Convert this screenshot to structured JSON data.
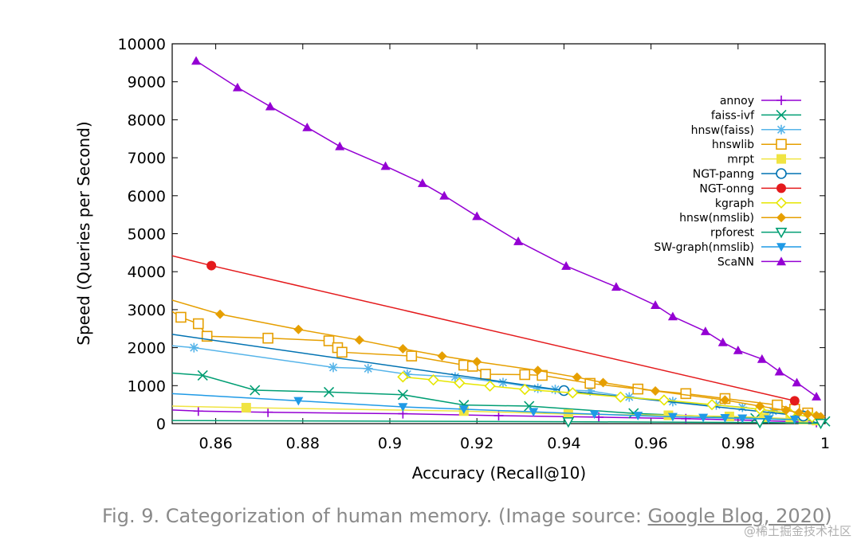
{
  "chart_data": {
    "type": "line",
    "title": "",
    "xlabel": "Accuracy (Recall@10)",
    "ylabel": "Speed (Queries per Second)",
    "xlim": [
      0.85,
      1.0
    ],
    "ylim": [
      0,
      10000
    ],
    "xticks": [
      0.86,
      0.88,
      0.9,
      0.92,
      0.94,
      0.96,
      0.98,
      1.0
    ],
    "xtick_labels": [
      "0.86",
      "0.88",
      "0.9",
      "0.92",
      "0.94",
      "0.96",
      "0.98",
      "1"
    ],
    "yticks": [
      0,
      1000,
      2000,
      3000,
      4000,
      5000,
      6000,
      7000,
      8000,
      9000,
      10000
    ],
    "ytick_labels": [
      "0",
      "1000",
      "2000",
      "3000",
      "4000",
      "5000",
      "6000",
      "7000",
      "8000",
      "9000",
      "10000"
    ],
    "grid": false,
    "legend_position": "top-right",
    "series": [
      {
        "name": "annoy",
        "color": "#9400d3",
        "marker": "plus",
        "x": [
          0.85,
          0.856,
          0.872,
          0.903,
          0.925,
          0.948,
          0.968,
          0.985,
          0.998
        ],
        "y": [
          360,
          330,
          300,
          260,
          210,
          170,
          130,
          80,
          30
        ]
      },
      {
        "name": "faiss-ivf",
        "color": "#009e73",
        "marker": "cross",
        "x": [
          0.85,
          0.857,
          0.869,
          0.886,
          0.903,
          0.917,
          0.932,
          0.956,
          0.984,
          1.0
        ],
        "y": [
          1330,
          1270,
          880,
          830,
          760,
          490,
          460,
          270,
          140,
          60
        ]
      },
      {
        "name": "hnsw(faiss)",
        "color": "#56b4e9",
        "marker": "star",
        "x": [
          0.85,
          0.855,
          0.887,
          0.895,
          0.904,
          0.915,
          0.926,
          0.934,
          0.938,
          0.946,
          0.955,
          0.965,
          0.975,
          0.981,
          0.988,
          0.993,
          0.997
        ],
        "y": [
          2050,
          2000,
          1480,
          1450,
          1300,
          1230,
          1080,
          930,
          900,
          860,
          700,
          580,
          490,
          430,
          330,
          250,
          180
        ]
      },
      {
        "name": "hnswlib",
        "color": "#e69f00",
        "marker": "open-square",
        "x": [
          0.85,
          0.852,
          0.856,
          0.858,
          0.872,
          0.886,
          0.888,
          0.889,
          0.905,
          0.917,
          0.919,
          0.922,
          0.931,
          0.935,
          0.946,
          0.957,
          0.968,
          0.977,
          0.989,
          0.993,
          0.996
        ],
        "y": [
          2950,
          2800,
          2630,
          2300,
          2250,
          2180,
          2000,
          1880,
          1780,
          1540,
          1510,
          1300,
          1290,
          1270,
          1060,
          910,
          790,
          660,
          490,
          380,
          280
        ]
      },
      {
        "name": "mrpt",
        "color": "#f0e442",
        "marker": "filled-square",
        "x": [
          0.85,
          0.867,
          0.917,
          0.941,
          0.964,
          0.978,
          0.986,
          0.992,
          0.995,
          0.998
        ],
        "y": [
          460,
          420,
          330,
          250,
          220,
          190,
          160,
          130,
          110,
          80
        ]
      },
      {
        "name": "NGT-panng",
        "color": "#0072b2",
        "marker": "open-circle",
        "x": [
          0.85,
          0.94,
          0.995,
          0.998
        ],
        "y": [
          2350,
          870,
          200,
          150
        ]
      },
      {
        "name": "NGT-onng",
        "color": "#e41a1c",
        "marker": "filled-circle",
        "x": [
          0.85,
          0.859,
          0.993
        ],
        "y": [
          4420,
          4160,
          600
        ]
      },
      {
        "name": "kgraph",
        "color": "#e6e600",
        "marker": "open-diamond",
        "x": [
          0.903,
          0.91,
          0.916,
          0.923,
          0.931,
          0.942,
          0.953,
          0.963,
          0.974,
          0.985,
          0.992,
          0.997
        ],
        "y": [
          1230,
          1150,
          1070,
          990,
          900,
          810,
          700,
          620,
          500,
          380,
          260,
          170
        ]
      },
      {
        "name": "hnsw(nmslib)",
        "color": "#e69f00",
        "marker": "filled-diamond",
        "x": [
          0.85,
          0.861,
          0.879,
          0.893,
          0.903,
          0.912,
          0.92,
          0.934,
          0.943,
          0.949,
          0.961,
          0.977,
          0.985,
          0.991,
          0.994,
          0.996,
          0.998,
          0.999
        ],
        "y": [
          3250,
          2880,
          2480,
          2200,
          1970,
          1780,
          1630,
          1400,
          1220,
          1080,
          860,
          620,
          460,
          350,
          290,
          250,
          210,
          180
        ]
      },
      {
        "name": "rpforest",
        "color": "#009e73",
        "marker": "open-triangle-down",
        "x": [
          0.85,
          0.941,
          0.985,
          0.999
        ],
        "y": [
          80,
          50,
          30,
          10
        ]
      },
      {
        "name": "SW-graph(nmslib)",
        "color": "#1f9ae6",
        "marker": "filled-triangle-down",
        "x": [
          0.85,
          0.879,
          0.903,
          0.917,
          0.933,
          0.947,
          0.957,
          0.965,
          0.972,
          0.977,
          0.981,
          0.987,
          0.993
        ],
        "y": [
          790,
          600,
          440,
          380,
          310,
          250,
          210,
          180,
          160,
          150,
          140,
          120,
          110
        ]
      },
      {
        "name": "ScaNN",
        "color": "#9400d3",
        "marker": "filled-triangle-up",
        "x": [
          0.8555,
          0.865,
          0.8725,
          0.881,
          0.8885,
          0.899,
          0.9075,
          0.9125,
          0.92,
          0.9295,
          0.9405,
          0.952,
          0.961,
          0.965,
          0.9725,
          0.9765,
          0.98,
          0.9855,
          0.9895,
          0.9935,
          0.998
        ],
        "y": [
          9550,
          8850,
          8350,
          7800,
          7300,
          6780,
          6330,
          6000,
          5460,
          4800,
          4150,
          3600,
          3120,
          2820,
          2430,
          2140,
          1930,
          1700,
          1370,
          1080,
          710
        ]
      }
    ]
  },
  "caption": {
    "prefix": "Fig. 9. Categorization of human memory. (Image source: ",
    "link": "Google Blog, 2020",
    "suffix": ")"
  },
  "watermark": "@稀土掘金技术社区"
}
